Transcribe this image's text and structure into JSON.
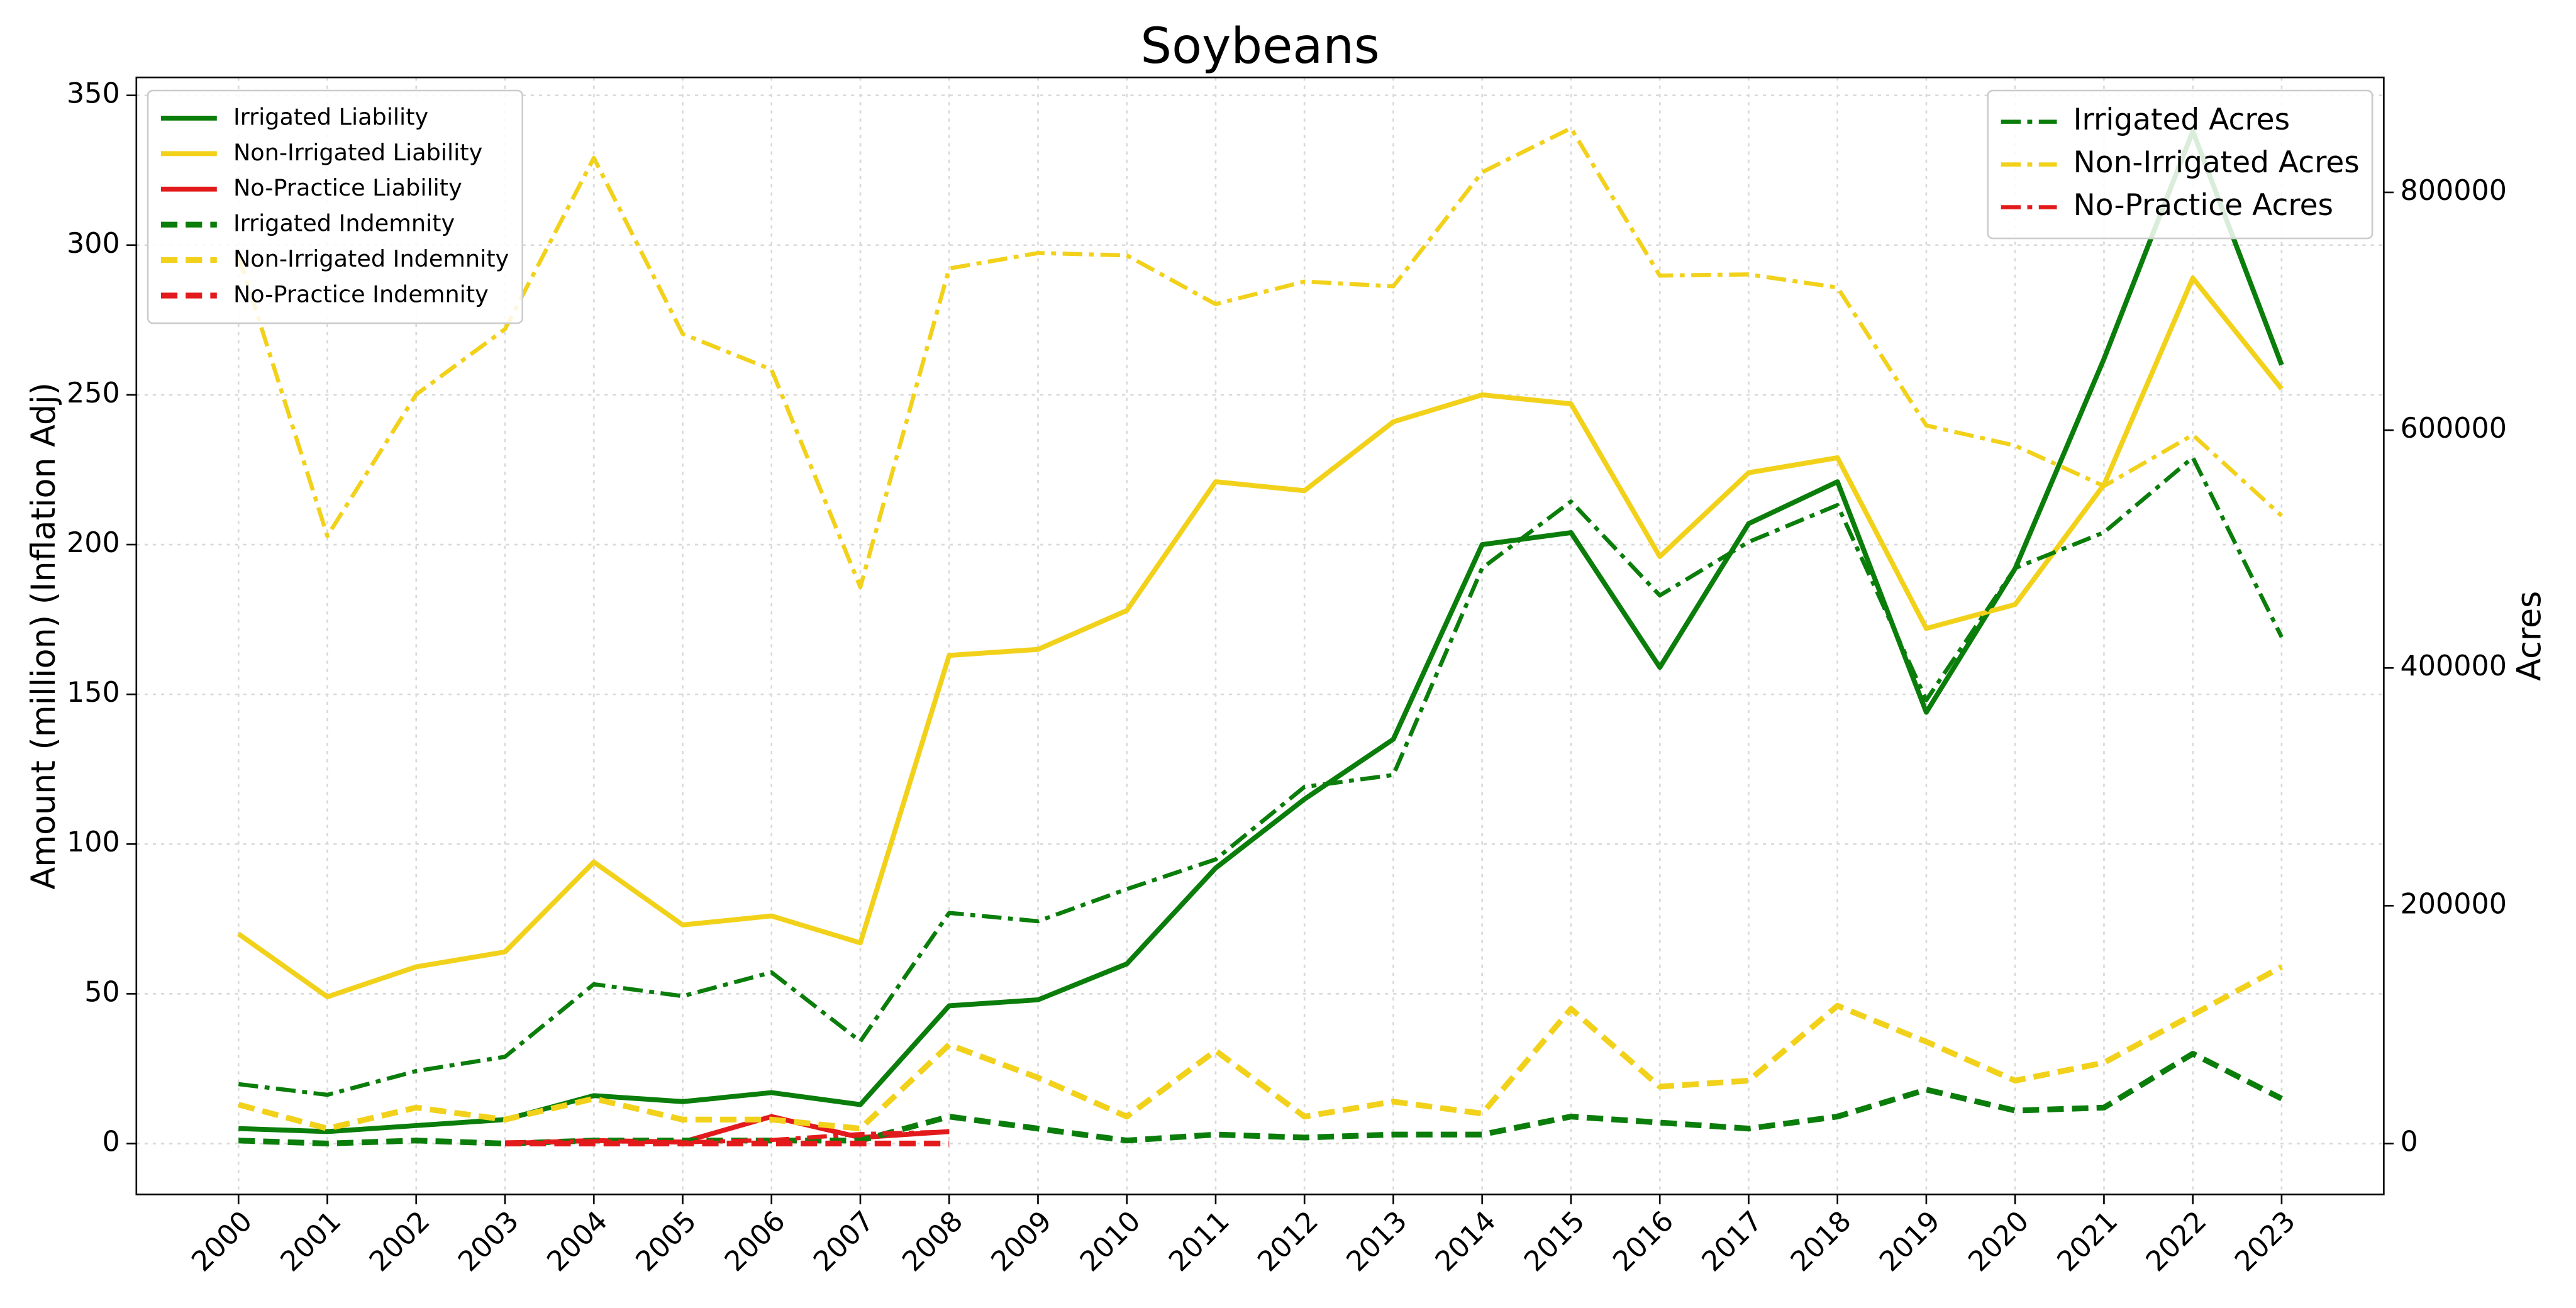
{
  "chart_data": {
    "type": "line",
    "title": "Soybeans",
    "ylabel": "Amount (million) (Inflation Adj)",
    "y2label": "Acres",
    "x": [
      2000,
      2001,
      2002,
      2003,
      2004,
      2005,
      2006,
      2007,
      2008,
      2009,
      2010,
      2011,
      2012,
      2013,
      2014,
      2015,
      2016,
      2017,
      2018,
      2019,
      2020,
      2021,
      2022,
      2023
    ],
    "xlim": [
      1998.85,
      2024.15
    ],
    "xticks": [
      2000,
      2001,
      2002,
      2003,
      2004,
      2005,
      2006,
      2007,
      2008,
      2009,
      2010,
      2011,
      2012,
      2013,
      2014,
      2015,
      2016,
      2017,
      2018,
      2019,
      2020,
      2021,
      2022,
      2023
    ],
    "ylim": [
      -17,
      356
    ],
    "yticks": [
      0,
      50,
      100,
      150,
      200,
      250,
      300,
      350
    ],
    "y2lim": [
      -42800,
      896700
    ],
    "y2ticks": [
      0,
      200000,
      400000,
      600000,
      800000
    ],
    "grid": true,
    "legend_loc": "upper left",
    "y2_legend_loc": "upper right",
    "series": [
      {
        "name": "Irrigated Liability",
        "color": "#0a7d0a",
        "linestyle": "solid",
        "values": [
          5,
          4,
          6,
          8,
          16,
          14,
          17,
          13,
          46,
          48,
          60,
          92,
          115,
          135,
          200,
          204,
          159,
          207,
          221,
          144,
          192,
          262,
          338,
          260
        ]
      },
      {
        "name": "Non-Irrigated Liability",
        "color": "#f2d11b",
        "linestyle": "solid",
        "values": [
          70,
          49,
          59,
          64,
          94,
          73,
          76,
          67,
          163,
          165,
          178,
          221,
          218,
          241,
          250,
          247,
          196,
          224,
          229,
          172,
          180,
          220,
          289,
          252
        ]
      },
      {
        "name": "No-Practice Liability",
        "color": "#e31a1c",
        "linestyle": "solid",
        "values": [
          null,
          null,
          null,
          0,
          1,
          0.5,
          9,
          2,
          4,
          null,
          null,
          null,
          null,
          null,
          null,
          null,
          null,
          null,
          null,
          null,
          null,
          null,
          null,
          null
        ]
      },
      {
        "name": "Irrigated Indemnity",
        "color": "#0a7d0a",
        "linestyle": "dashed",
        "values": [
          1,
          0,
          1,
          0,
          1,
          1,
          1,
          1,
          9,
          5,
          1,
          3,
          2,
          3,
          3,
          9,
          7,
          5,
          9,
          18,
          11,
          12,
          30,
          15
        ]
      },
      {
        "name": "Non-Irrigated Indemnity",
        "color": "#f2d11b",
        "linestyle": "dashed",
        "values": [
          13,
          5,
          12,
          8,
          15,
          8,
          8,
          5,
          33,
          22,
          9,
          31,
          9,
          14,
          10,
          45,
          19,
          21,
          46,
          34,
          21,
          27,
          43,
          59
        ]
      },
      {
        "name": "No-Practice Indemnity",
        "color": "#e31a1c",
        "linestyle": "dashed",
        "values": [
          null,
          null,
          null,
          0,
          0,
          0,
          0,
          0,
          0,
          null,
          null,
          null,
          null,
          null,
          null,
          null,
          null,
          null,
          null,
          null,
          null,
          null,
          null,
          null
        ]
      },
      {
        "name": "Irrigated Acres",
        "color": "#0a7d0a",
        "linestyle": "dashdot",
        "axis": "y2",
        "values": [
          50000,
          41000,
          61000,
          73000,
          134000,
          124000,
          144000,
          86000,
          194000,
          187000,
          214000,
          239000,
          300000,
          310000,
          484000,
          540000,
          461000,
          506000,
          537000,
          373000,
          484000,
          514000,
          577000,
          426000
        ]
      },
      {
        "name": "Non-Irrigated Acres",
        "color": "#f2d11b",
        "linestyle": "dashdot",
        "axis": "y2",
        "values": [
          747000,
          511000,
          630000,
          685000,
          829000,
          681000,
          651000,
          468000,
          736000,
          749000,
          747000,
          706000,
          725000,
          721000,
          817000,
          854000,
          730000,
          731000,
          720000,
          604000,
          587000,
          553000,
          596000,
          528000
        ]
      },
      {
        "name": "No-Practice Acres",
        "color": "#e31a1c",
        "linestyle": "dashdot",
        "axis": "y2",
        "values": [
          null,
          null,
          null,
          1000,
          2000,
          1000,
          3000,
          8000,
          10000,
          null,
          null,
          null,
          null,
          null,
          null,
          null,
          null,
          null,
          null,
          null,
          null,
          null,
          null,
          null
        ]
      }
    ]
  }
}
